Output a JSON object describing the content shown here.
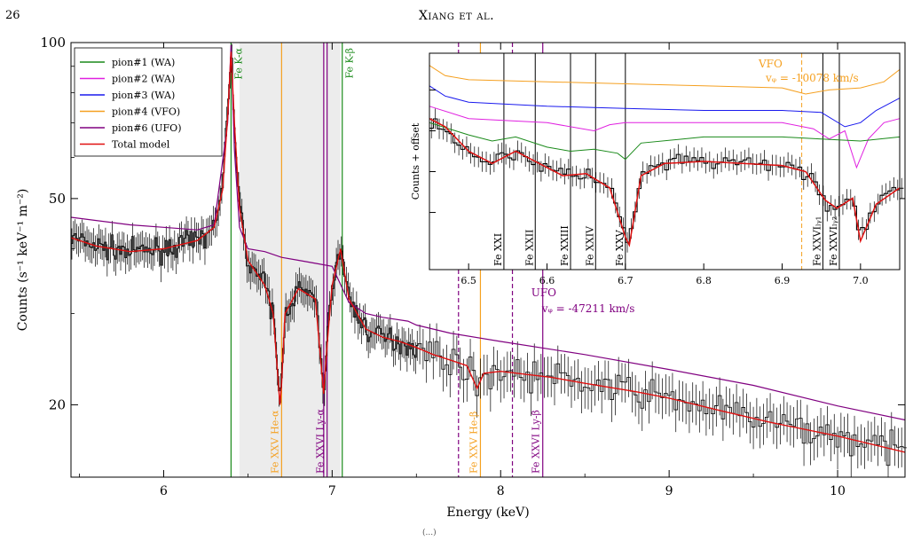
{
  "header": {
    "page_number": "26",
    "running_head": "Xiang et al."
  },
  "caption_fragment": "(...)",
  "chart_data": [
    {
      "type": "line",
      "xlabel": "Energy (keV)",
      "ylabel": "Counts (s⁻¹ keV⁻¹ m⁻²)",
      "xlim": [
        5.45,
        10.4
      ],
      "ylim": [
        14.5,
        100
      ],
      "y_scale": "log",
      "x_ticks": [
        6,
        7,
        8,
        9,
        10
      ],
      "x_tick_labels": [
        "6",
        "7",
        "8",
        "9",
        "10"
      ],
      "y_ticks": [
        20,
        50,
        100
      ],
      "y_tick_labels": [
        "20",
        "50",
        "100"
      ],
      "shaded_band": [
        6.45,
        7.05
      ],
      "legend": {
        "placement": "top-left",
        "entries": [
          {
            "label": "pion#1 (WA)",
            "color": "#1a8a1a"
          },
          {
            "label": "pion#2 (WA)",
            "color": "#e020e0"
          },
          {
            "label": "pion#3 (WA)",
            "color": "#1a1aee"
          },
          {
            "label": "pion#4 (VFO)",
            "color": "#f5a020"
          },
          {
            "label": "pion#6 (UFO)",
            "color": "#800080"
          },
          {
            "label": "Total model",
            "color": "#e01010"
          }
        ]
      },
      "series": [
        {
          "name": "Total model",
          "color": "#e01010",
          "x": [
            5.45,
            5.6,
            5.8,
            6.0,
            6.2,
            6.3,
            6.35,
            6.38,
            6.4,
            6.42,
            6.45,
            6.5,
            6.6,
            6.65,
            6.69,
            6.7,
            6.72,
            6.8,
            6.9,
            6.95,
            6.97,
            7.0,
            7.05,
            7.1,
            7.2,
            7.3,
            7.4,
            7.5,
            7.6,
            7.7,
            7.8,
            7.86,
            7.9,
            8.0,
            8.1,
            8.3,
            8.5,
            8.8,
            9.0,
            9.3,
            9.6,
            10.0,
            10.4
          ],
          "y": [
            42,
            40.5,
            39.5,
            40,
            41.5,
            44,
            52,
            72,
            96,
            70,
            48,
            38,
            34,
            30,
            20,
            22,
            30,
            33.5,
            32,
            21,
            26,
            34,
            40,
            32,
            28,
            27,
            26.5,
            25.8,
            25,
            24.4,
            23.8,
            21.5,
            23,
            23.2,
            23,
            22.6,
            22,
            21.2,
            20.6,
            19.5,
            18.5,
            17.4,
            16.2
          ]
        },
        {
          "name": "pion#6 (UFO)",
          "color": "#800080",
          "x": [
            5.45,
            5.8,
            6.0,
            6.2,
            6.3,
            6.38,
            6.4,
            6.42,
            6.45,
            6.5,
            6.6,
            6.7,
            6.8,
            6.9,
            7.0,
            7.1,
            7.2,
            7.3,
            7.45,
            7.5,
            7.7,
            8.0,
            8.5,
            9.0,
            9.5,
            10.0,
            10.4
          ],
          "y": [
            46,
            44.5,
            44,
            43.5,
            44.5,
            70,
            99,
            62,
            44,
            40,
            39.5,
            38.5,
            38,
            37.5,
            37,
            31.5,
            30,
            29.5,
            29,
            28.5,
            27.5,
            26.5,
            25,
            23.4,
            21.8,
            19.9,
            18.7
          ]
        }
      ],
      "data_trace": {
        "name": "data",
        "color": "#000000"
      },
      "line_markers": [
        {
          "label": "Fe K-α",
          "energy": 6.4,
          "color": "#1a8a1a",
          "style": "solid",
          "label_position": "top"
        },
        {
          "label": "Fe K-β",
          "energy": 7.06,
          "color": "#1a8a1a",
          "style": "solid",
          "label_position": "top"
        },
        {
          "label": "Fe XXV He-α",
          "energy": 6.7,
          "color": "#f5a020",
          "style": "solid",
          "label_position": "bottom"
        },
        {
          "label": "Fe XXVI Ly-α",
          "energy": 6.97,
          "color": "#800080",
          "style": "solid",
          "label_position": "bottom"
        },
        {
          "label": "",
          "energy": 6.95,
          "color": "#800080",
          "style": "solid",
          "label_position": "none"
        },
        {
          "label": "Fe XXV He-β",
          "energy": 7.88,
          "color": "#f5a020",
          "style": "solid",
          "label_position": "bottom"
        },
        {
          "label": "Fe XXVI Ly-β",
          "energy": 8.25,
          "color": "#800080",
          "style": "solid",
          "label_position": "bottom"
        },
        {
          "label": "",
          "energy": 7.75,
          "color": "#800080",
          "style": "dashed",
          "label_position": "none"
        },
        {
          "label": "",
          "energy": 8.07,
          "color": "#800080",
          "style": "dashed",
          "label_position": "none"
        }
      ],
      "annotations": [
        {
          "text": "UFO",
          "x": 8.15,
          "color": "#800080"
        },
        {
          "text": "vᵩ = -47211 km/s",
          "x": 8.15,
          "color": "#800080"
        }
      ]
    },
    {
      "type": "line",
      "placement": "inset-top-right",
      "xlabel": "",
      "ylabel": "Counts + offset",
      "xlim": [
        6.45,
        7.05
      ],
      "x_ticks": [
        6.5,
        6.6,
        6.7,
        6.8,
        6.9,
        7.0
      ],
      "x_tick_labels": [
        "6.5",
        "6.6",
        "6.7",
        "6.8",
        "6.9",
        "7.0"
      ],
      "y_tick_labels": [],
      "series": [
        {
          "name": "pion#4 (VFO)",
          "color": "#f5a020",
          "x": [
            6.45,
            6.47,
            6.5,
            6.6,
            6.7,
            6.8,
            6.9,
            6.93,
            6.96,
            7.0,
            7.03,
            7.05
          ],
          "y": [
            8.6,
            8.35,
            8.25,
            8.2,
            8.15,
            8.1,
            8.05,
            7.9,
            8.0,
            8.05,
            8.2,
            8.5
          ]
        },
        {
          "name": "pion#3 (WA)",
          "color": "#1a1aee",
          "x": [
            6.45,
            6.47,
            6.5,
            6.6,
            6.7,
            6.8,
            6.9,
            6.95,
            6.98,
            7.0,
            7.02,
            7.05
          ],
          "y": [
            8.1,
            7.85,
            7.7,
            7.6,
            7.55,
            7.5,
            7.5,
            7.45,
            7.1,
            7.2,
            7.5,
            7.8
          ]
        },
        {
          "name": "pion#2 (WA)",
          "color": "#e020e0",
          "x": [
            6.45,
            6.5,
            6.6,
            6.66,
            6.68,
            6.7,
            6.75,
            6.8,
            6.9,
            6.94,
            6.96,
            6.98,
            6.995,
            7.01,
            7.03,
            7.05
          ],
          "y": [
            7.6,
            7.3,
            7.2,
            7.0,
            7.15,
            7.2,
            7.2,
            7.2,
            7.2,
            7.05,
            6.8,
            7.0,
            6.1,
            6.8,
            7.2,
            7.3
          ]
        },
        {
          "name": "pion#1 (WA)",
          "color": "#1a8a1a",
          "x": [
            6.45,
            6.5,
            6.53,
            6.56,
            6.6,
            6.63,
            6.66,
            6.69,
            6.7,
            6.72,
            6.8,
            6.9,
            6.95,
            7.0,
            7.05
          ],
          "y": [
            7.2,
            6.9,
            6.75,
            6.85,
            6.6,
            6.5,
            6.55,
            6.45,
            6.3,
            6.7,
            6.85,
            6.85,
            6.8,
            6.75,
            6.85
          ]
        },
        {
          "name": "Total model",
          "color": "#e01010",
          "x": [
            6.45,
            6.47,
            6.5,
            6.53,
            6.56,
            6.59,
            6.62,
            6.65,
            6.68,
            6.7,
            6.705,
            6.72,
            6.75,
            6.8,
            6.9,
            6.93,
            6.955,
            6.97,
            6.99,
            7.0,
            7.02,
            7.05
          ],
          "y": [
            7.3,
            7.1,
            6.5,
            6.2,
            6.5,
            6.2,
            5.9,
            5.95,
            5.6,
            4.4,
            4.2,
            5.9,
            6.2,
            6.25,
            6.15,
            6.0,
            5.3,
            5.1,
            5.35,
            4.3,
            5.2,
            5.6
          ]
        }
      ],
      "data_trace": {
        "name": "data",
        "color": "#000000"
      },
      "line_markers": [
        {
          "label": "Fe XXI",
          "energy": 6.545,
          "color": "#000000",
          "style": "solid"
        },
        {
          "label": "Fe XXII",
          "energy": 6.585,
          "color": "#000000",
          "style": "solid"
        },
        {
          "label": "Fe XXIII",
          "energy": 6.63,
          "color": "#000000",
          "style": "solid"
        },
        {
          "label": "Fe XXIV",
          "energy": 6.662,
          "color": "#000000",
          "style": "solid"
        },
        {
          "label": "Fe XXV",
          "energy": 6.7,
          "color": "#000000",
          "style": "solid"
        },
        {
          "label": "Fe XXVIₗᵧ₁",
          "energy": 6.952,
          "color": "#000000",
          "style": "solid"
        },
        {
          "label": "Fe XXVIₗᵧ₂",
          "energy": 6.973,
          "color": "#000000",
          "style": "solid"
        },
        {
          "label": "",
          "energy": 6.925,
          "color": "#f5a020",
          "style": "dashed"
        }
      ],
      "annotations": [
        {
          "text": "VFO",
          "x": 6.87,
          "color": "#f5a020"
        },
        {
          "text": "vᵩ = -10078 km/s",
          "x": 6.87,
          "color": "#f5a020"
        }
      ]
    }
  ]
}
